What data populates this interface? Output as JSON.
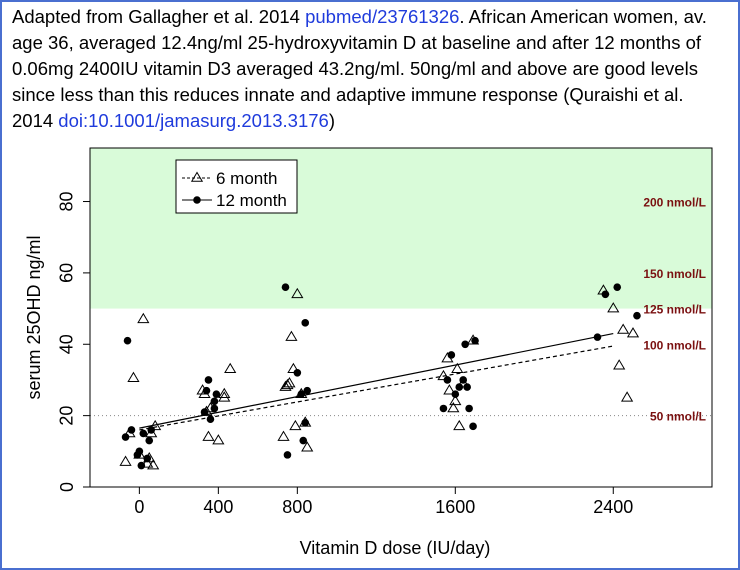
{
  "caption": {
    "part1": "Adapted from Gallagher et al. 2014 ",
    "link1": "pubmed/23761326",
    "part2": ". African American women, av. age 36, averaged 12.4ng/ml 25-hydroxyvitamin D at baseline and after 12 months of 0.06mg 2400IU vitamin D3 averaged 43.2ng/ml.  50ng/ml and above are good levels since less than this reduces innate and adaptive immune response (Quraishi et al. 2014 ",
    "link2": "doi:10.1001/jamasurg.2013.3176",
    "part3": ")"
  },
  "colors": {
    "good_zone": "#d9fbd9",
    "nmol_label": "#7a1010",
    "link": "#1f3bdc",
    "frame": "#4a6fd0"
  },
  "chart_data": {
    "type": "scatter",
    "title": "",
    "xlabel": "Vitamin D dose (IU/day)",
    "ylabel": "serum 25OHD ng/ml",
    "xlim": [
      -250,
      2900
    ],
    "ylim": [
      0,
      95
    ],
    "xticks": [
      0,
      400,
      800,
      1600,
      2400
    ],
    "yticks": [
      0,
      20,
      40,
      60,
      80
    ],
    "good_zone_min": 50,
    "reference_line": 20,
    "legend": {
      "position": "top-left",
      "entries": [
        "6 month",
        "12 month"
      ]
    },
    "nmol_labels": [
      {
        "y": 80,
        "text": "200 nmol/L"
      },
      {
        "y": 60,
        "text": "150 nmol/L"
      },
      {
        "y": 50,
        "text": "125 nmol/L"
      },
      {
        "y": 40,
        "text": "100 nmol/L"
      },
      {
        "y": 20,
        "text": "50 nmol/L"
      }
    ],
    "series": [
      {
        "name": "6 month",
        "marker": "triangle-open",
        "fit": [
          [
            0,
            16.0
          ],
          [
            2400,
            39.5
          ]
        ],
        "points": [
          [
            -70,
            7
          ],
          [
            -30,
            30.5
          ],
          [
            0,
            9
          ],
          [
            20,
            47
          ],
          [
            40,
            6.5
          ],
          [
            50,
            8
          ],
          [
            60,
            15
          ],
          [
            70,
            6
          ],
          [
            -50,
            15
          ],
          [
            80,
            17
          ],
          [
            320,
            27
          ],
          [
            330,
            26
          ],
          [
            340,
            21
          ],
          [
            350,
            14
          ],
          [
            360,
            22
          ],
          [
            400,
            13
          ],
          [
            430,
            25
          ],
          [
            430,
            26
          ],
          [
            460,
            33
          ],
          [
            730,
            14
          ],
          [
            740,
            28
          ],
          [
            750,
            28.5
          ],
          [
            760,
            29
          ],
          [
            770,
            42
          ],
          [
            780,
            33
          ],
          [
            790,
            17
          ],
          [
            800,
            54
          ],
          [
            820,
            26
          ],
          [
            840,
            18
          ],
          [
            850,
            11
          ],
          [
            1540,
            31
          ],
          [
            1560,
            36
          ],
          [
            1570,
            27
          ],
          [
            1590,
            22
          ],
          [
            1600,
            24
          ],
          [
            1610,
            33
          ],
          [
            1620,
            17
          ],
          [
            1640,
            29
          ],
          [
            1690,
            41
          ],
          [
            2350,
            55
          ],
          [
            2400,
            50
          ],
          [
            2430,
            34
          ],
          [
            2450,
            44
          ],
          [
            2470,
            25
          ],
          [
            2500,
            43
          ]
        ]
      },
      {
        "name": "12 month",
        "marker": "circle-filled",
        "fit": [
          [
            0,
            16.5
          ],
          [
            2400,
            43
          ]
        ],
        "points": [
          [
            -60,
            41
          ],
          [
            -70,
            14
          ],
          [
            -40,
            16
          ],
          [
            -10,
            9
          ],
          [
            0,
            10
          ],
          [
            10,
            6
          ],
          [
            20,
            15
          ],
          [
            40,
            8
          ],
          [
            50,
            13
          ],
          [
            60,
            16
          ],
          [
            330,
            21
          ],
          [
            340,
            27
          ],
          [
            350,
            30
          ],
          [
            360,
            19
          ],
          [
            380,
            22
          ],
          [
            380,
            24
          ],
          [
            390,
            26
          ],
          [
            740,
            56
          ],
          [
            750,
            9
          ],
          [
            800,
            32
          ],
          [
            830,
            13
          ],
          [
            840,
            18
          ],
          [
            840,
            46
          ],
          [
            850,
            27
          ],
          [
            820,
            26
          ],
          [
            1540,
            22
          ],
          [
            1560,
            30
          ],
          [
            1580,
            37
          ],
          [
            1600,
            26
          ],
          [
            1620,
            28
          ],
          [
            1640,
            30
          ],
          [
            1650,
            40
          ],
          [
            1660,
            28
          ],
          [
            1670,
            22
          ],
          [
            1690,
            17
          ],
          [
            1700,
            41
          ],
          [
            2320,
            42
          ],
          [
            2360,
            54
          ],
          [
            2420,
            56
          ],
          [
            2520,
            48
          ]
        ]
      }
    ]
  }
}
